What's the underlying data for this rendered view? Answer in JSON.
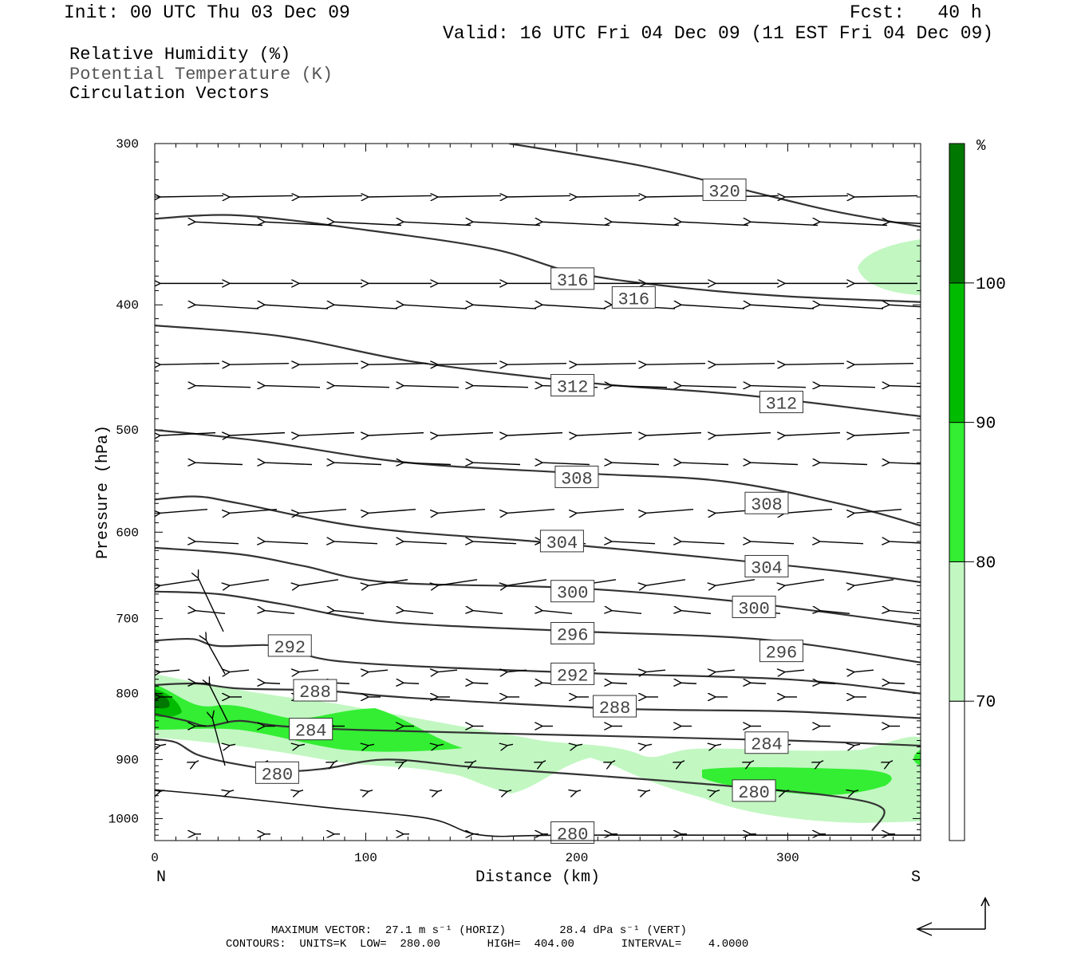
{
  "header": {
    "init": "Init: 00 UTC Thu 03 Dec 09",
    "fcst": "Fcst:   40 h",
    "valid": "Valid: 16 UTC Fri 04 Dec 09 (11 EST Fri 04 Dec 09)"
  },
  "legend": {
    "rh": "Relative Humidity (%)",
    "theta": "Potential Temperature (K)",
    "vectors": "Circulation Vectors"
  },
  "chart_data": {
    "type": "cross-section",
    "xlabel": "Distance (km)",
    "ylabel": "Pressure (hPa)",
    "xlim": [
      0,
      363
    ],
    "ylim": [
      1040,
      300
    ],
    "y_scale": "log-pressure",
    "x_ticks": [
      0,
      100,
      200,
      300
    ],
    "y_ticks": [
      300,
      400,
      500,
      600,
      700,
      800,
      900,
      1000
    ],
    "x_end_labels": [
      "N",
      "S"
    ],
    "theta_contours": [
      {
        "label": "320",
        "label_pos": [
          270,
          326
        ],
        "points": [
          [
            168,
            300
          ],
          [
            230,
            312
          ],
          [
            280,
            326
          ],
          [
            320,
            338
          ],
          [
            363,
            348
          ]
        ]
      },
      {
        "label": "316",
        "label_pos": [
          198,
          382
        ],
        "points": [
          [
            0,
            343
          ],
          [
            40,
            341
          ],
          [
            100,
            350
          ],
          [
            160,
            362
          ],
          [
            200,
            378
          ],
          [
            250,
            388
          ],
          [
            300,
            394
          ],
          [
            363,
            398
          ]
        ]
      },
      {
        "label": "316",
        "label_pos": [
          227,
          395
        ],
        "points": []
      },
      {
        "label": "312",
        "label_pos": [
          198,
          462
        ],
        "points": [
          [
            0,
            415
          ],
          [
            60,
            423
          ],
          [
            120,
            442
          ],
          [
            180,
            455
          ],
          [
            220,
            462
          ],
          [
            280,
            470
          ],
          [
            363,
            488
          ]
        ]
      },
      {
        "label": "312",
        "label_pos": [
          297,
          476
        ],
        "points": []
      },
      {
        "label": "308",
        "label_pos": [
          200,
          544
        ],
        "points": [
          [
            0,
            500
          ],
          [
            50,
            510
          ],
          [
            120,
            530
          ],
          [
            200,
            540
          ],
          [
            270,
            548
          ],
          [
            330,
            573
          ],
          [
            363,
            593
          ]
        ]
      },
      {
        "label": "308",
        "label_pos": [
          290,
          570
        ],
        "points": []
      },
      {
        "label": "304",
        "label_pos": [
          193,
          610
        ],
        "points": [
          [
            0,
            566
          ],
          [
            20,
            563
          ],
          [
            40,
            570
          ],
          [
            100,
            595
          ],
          [
            180,
            610
          ],
          [
            250,
            625
          ],
          [
            320,
            642
          ],
          [
            363,
            656
          ]
        ]
      },
      {
        "label": "304",
        "label_pos": [
          290,
          638
        ],
        "points": []
      },
      {
        "label": "300",
        "label_pos": [
          198,
          667
        ],
        "points": [
          [
            0,
            617
          ],
          [
            40,
            624
          ],
          [
            70,
            637
          ],
          [
            110,
            656
          ],
          [
            200,
            663
          ],
          [
            280,
            680
          ],
          [
            363,
            708
          ]
        ]
      },
      {
        "label": "300",
        "label_pos": [
          284,
          686
        ],
        "points": []
      },
      {
        "label": "296",
        "label_pos": [
          198,
          719
        ],
        "points": [
          [
            0,
            667
          ],
          [
            30,
            670
          ],
          [
            60,
            682
          ],
          [
            110,
            704
          ],
          [
            200,
            716
          ],
          [
            290,
            727
          ],
          [
            363,
            757
          ]
        ]
      },
      {
        "label": "296",
        "label_pos": [
          297,
          742
        ],
        "points": []
      },
      {
        "label": "292",
        "label_pos": [
          64,
          735
        ],
        "points": [
          [
            0,
            728
          ],
          [
            18,
            726
          ],
          [
            30,
            735
          ],
          [
            60,
            735
          ],
          [
            90,
            756
          ],
          [
            200,
            771
          ],
          [
            300,
            780
          ],
          [
            363,
            800
          ]
        ]
      },
      {
        "label": "292",
        "label_pos": [
          198,
          773
        ],
        "points": []
      },
      {
        "label": "288",
        "label_pos": [
          76,
          796
        ],
        "points": [
          [
            0,
            788
          ],
          [
            20,
            786
          ],
          [
            40,
            793
          ],
          [
            80,
            796
          ],
          [
            120,
            806
          ],
          [
            220,
            822
          ],
          [
            300,
            826
          ],
          [
            363,
            836
          ]
        ]
      },
      {
        "label": "288",
        "label_pos": [
          218,
          819
        ],
        "points": []
      },
      {
        "label": "284",
        "label_pos": [
          74,
          853
        ],
        "points": [
          [
            0,
            830
          ],
          [
            15,
            840
          ],
          [
            25,
            848
          ],
          [
            40,
            840
          ],
          [
            60,
            848
          ],
          [
            100,
            854
          ],
          [
            200,
            862
          ],
          [
            300,
            870
          ],
          [
            363,
            878
          ]
        ]
      },
      {
        "label": "284",
        "label_pos": [
          290,
          874
        ],
        "points": []
      },
      {
        "label": "280",
        "label_pos": [
          58,
          922
        ],
        "points": [
          [
            0,
            868
          ],
          [
            10,
            873
          ],
          [
            20,
            892
          ],
          [
            35,
            905
          ],
          [
            60,
            918
          ],
          [
            80,
            915
          ],
          [
            110,
            900
          ],
          [
            150,
            912
          ],
          [
            200,
            924
          ],
          [
            260,
            940
          ],
          [
            320,
            960
          ],
          [
            345,
            982
          ],
          [
            340,
            1022
          ]
        ]
      },
      {
        "label": "280",
        "label_pos": [
          284,
          952
        ],
        "points": []
      },
      {
        "label": "280",
        "label_pos": [
          198,
          1026
        ],
        "points": [
          [
            0,
            950
          ],
          [
            30,
            960
          ],
          [
            80,
            980
          ],
          [
            130,
            1000
          ],
          [
            155,
            1030
          ],
          [
            200,
            1030
          ],
          [
            363,
            1030
          ]
        ]
      }
    ],
    "rh_colorbar": {
      "unit": "%",
      "levels": [
        "70",
        "80",
        "90",
        "100"
      ],
      "colors": [
        "#ffffff",
        "#c2f7c2",
        "#33ee33",
        "#00bb00",
        "#007700"
      ]
    },
    "vectors_note": "circulation vectors pointing predominantly from S to N (leftward) across the section",
    "footer": {
      "max_vector": "MAXIMUM VECTOR:  27.1 m s⁻¹ (HORIZ)        28.4 dPa s⁻¹ (VERT)",
      "contours": "CONTOURS:  UNITS=K  LOW=  280.00       HIGH=  404.00       INTERVAL=    4.0000"
    }
  }
}
